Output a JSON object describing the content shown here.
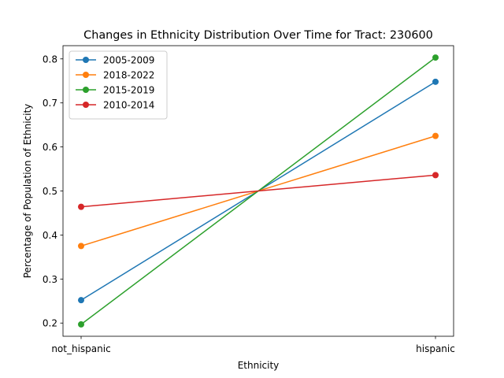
{
  "chart_data": {
    "type": "line",
    "title": "Changes in Ethnicity Distribution Over Time for Tract: 230600",
    "xlabel": "Ethnicity",
    "ylabel": "Percentage of Population of Ethnicity",
    "categories": [
      "not_hispanic",
      "hispanic"
    ],
    "ylim": [
      0.17,
      0.83
    ],
    "yticks": [
      0.2,
      0.3,
      0.4,
      0.5,
      0.6,
      0.7,
      0.8
    ],
    "grid": false,
    "legend_position": "top-left",
    "series": [
      {
        "name": "2005-2009",
        "color": "#1f77b4",
        "values": [
          0.252,
          0.748
        ]
      },
      {
        "name": "2018-2022",
        "color": "#ff7f0e",
        "values": [
          0.375,
          0.625
        ]
      },
      {
        "name": "2015-2019",
        "color": "#2ca02c",
        "values": [
          0.197,
          0.803
        ]
      },
      {
        "name": "2010-2014",
        "color": "#d62728",
        "values": [
          0.464,
          0.536
        ]
      }
    ]
  }
}
